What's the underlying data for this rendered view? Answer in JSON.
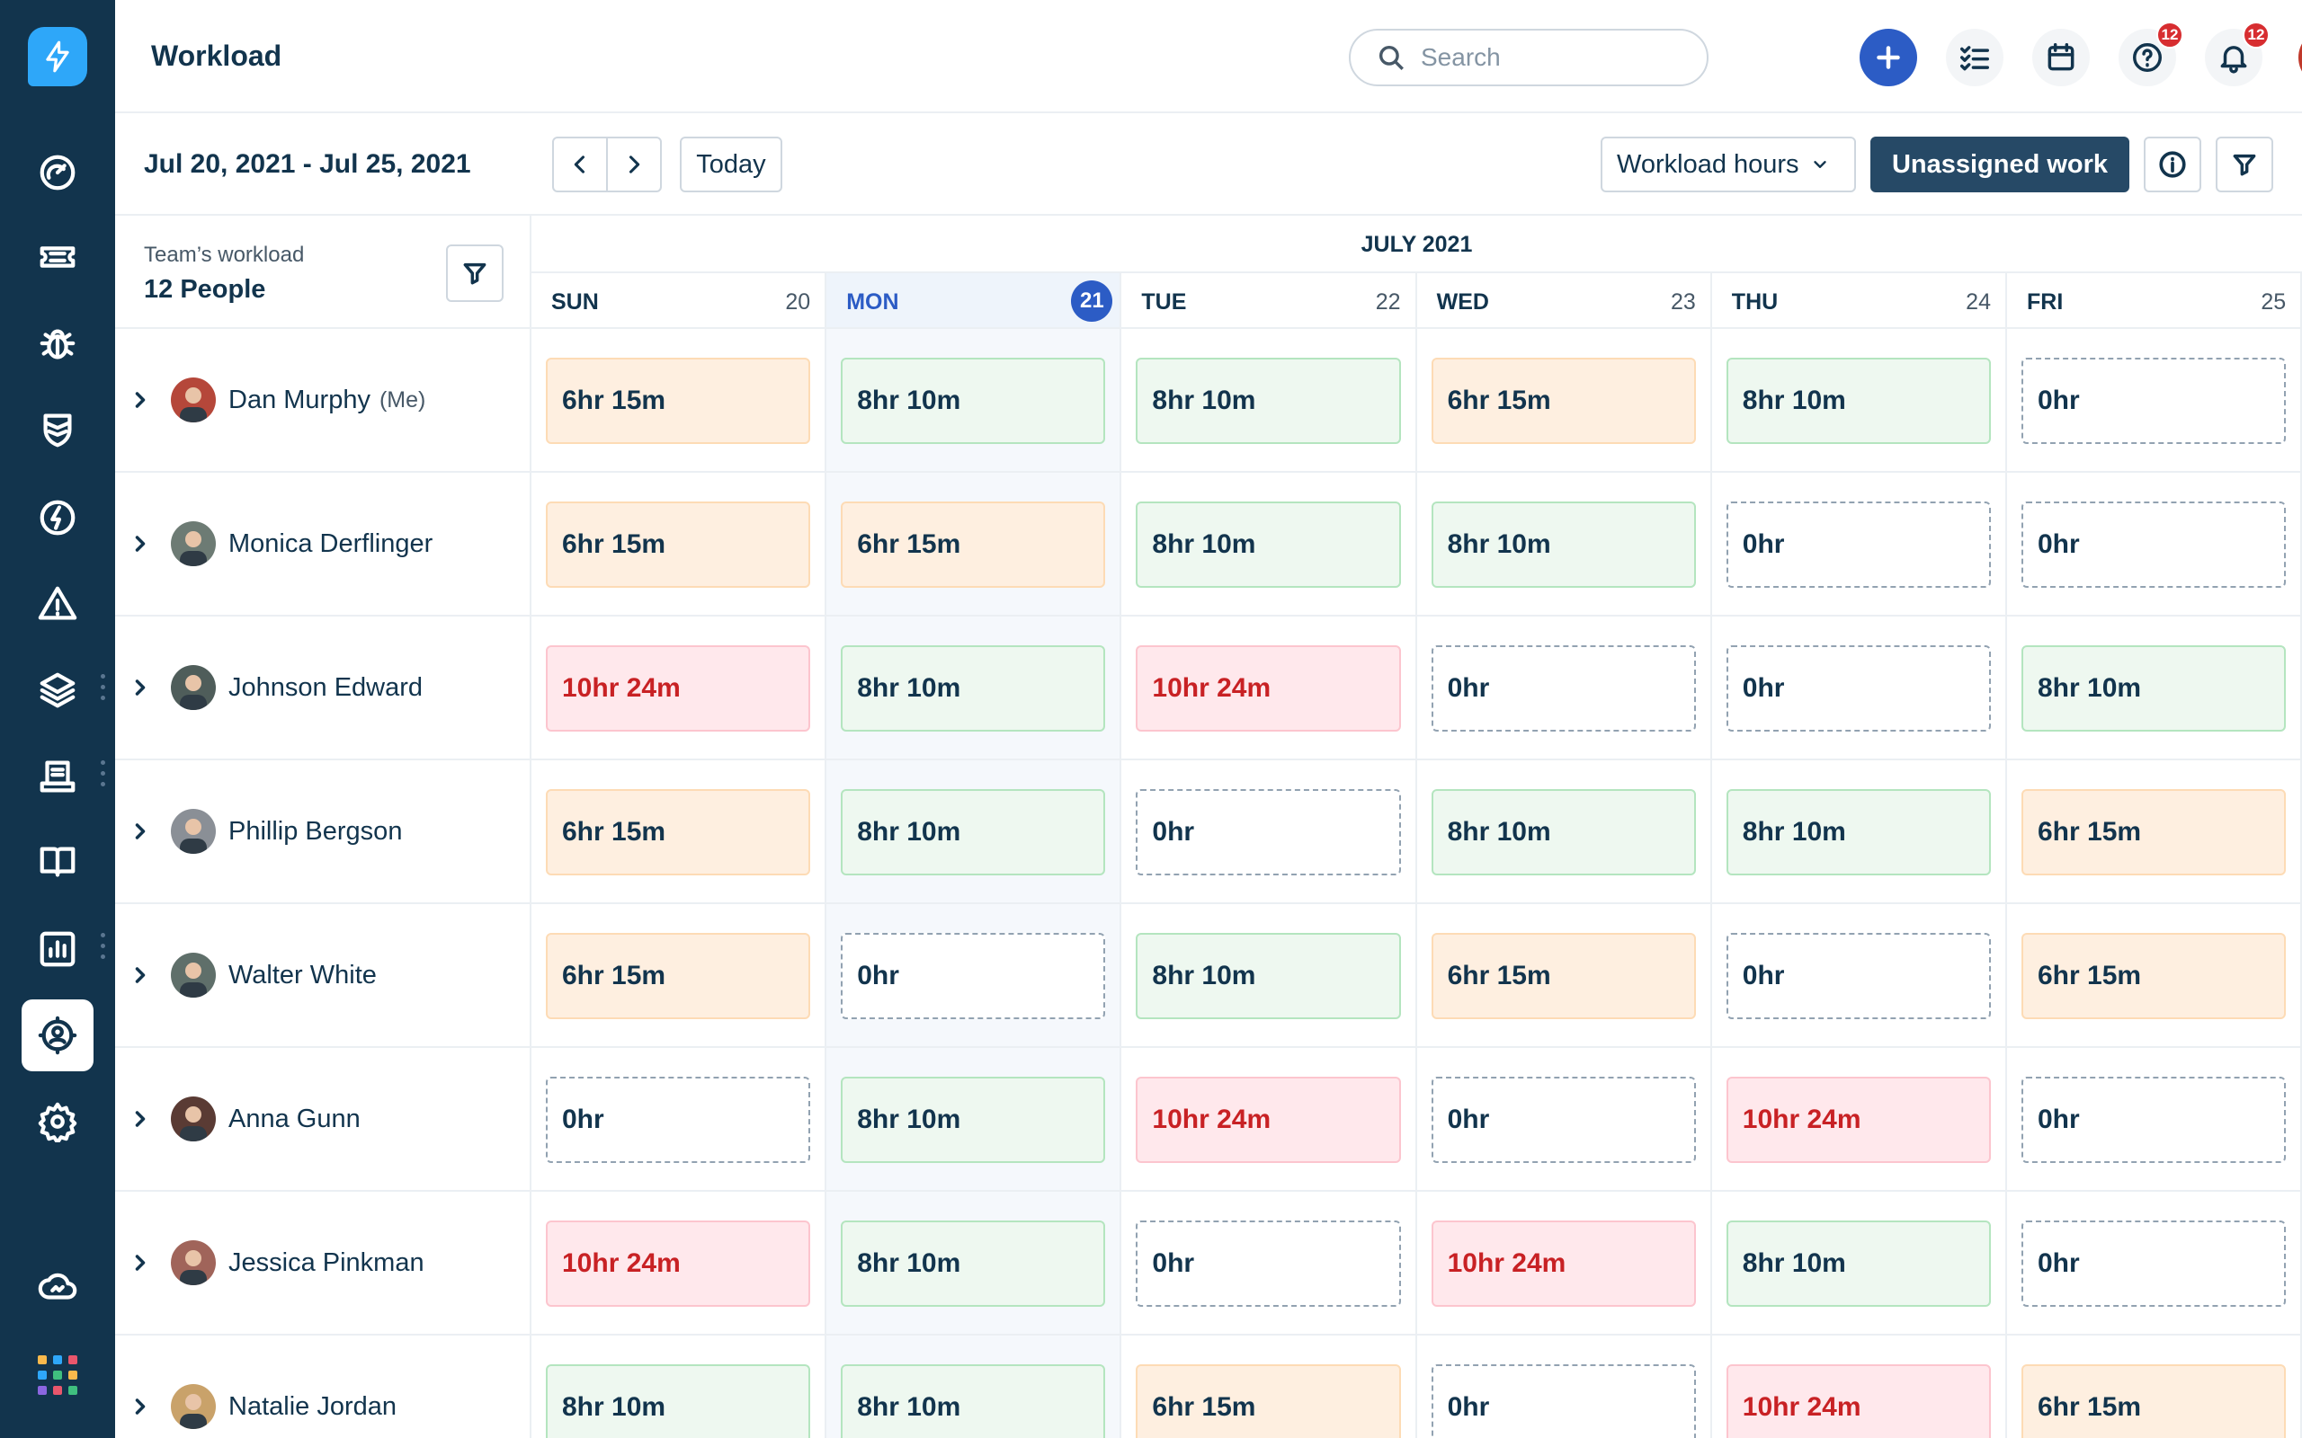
{
  "header": {
    "title": "Workload",
    "search_placeholder": "Search",
    "help_badge": "12",
    "notifications_badge": "12"
  },
  "toolbar": {
    "date_range": "Jul 20, 2021 - Jul 25, 2021",
    "today_label": "Today",
    "view_select": "Workload hours",
    "unassigned_label": "Unassigned work"
  },
  "team": {
    "label": "Team’s workload",
    "count": "12 People"
  },
  "calendar": {
    "month": "JULY 2021",
    "days": [
      {
        "name": "SUN",
        "date": "20",
        "today": false
      },
      {
        "name": "MON",
        "date": "21",
        "today": true
      },
      {
        "name": "TUE",
        "date": "22",
        "today": false
      },
      {
        "name": "WED",
        "date": "23",
        "today": false
      },
      {
        "name": "THU",
        "date": "24",
        "today": false
      },
      {
        "name": "FRI",
        "date": "25",
        "today": false
      }
    ]
  },
  "colors": {
    "sidebar": "#12344d",
    "primary": "#2c5cc5",
    "overload": "#c82124"
  },
  "people": [
    {
      "name": "Dan Murphy",
      "me": "(Me)",
      "avatar": "#b5473a",
      "hours": [
        {
          "v": "6hr 15m",
          "s": "orange"
        },
        {
          "v": "8hr 10m",
          "s": "green"
        },
        {
          "v": "8hr 10m",
          "s": "green"
        },
        {
          "v": "6hr 15m",
          "s": "orange"
        },
        {
          "v": "8hr 10m",
          "s": "green"
        },
        {
          "v": "0hr",
          "s": "empty"
        }
      ]
    },
    {
      "name": "Monica Derflinger",
      "avatar": "#6d7b74",
      "hours": [
        {
          "v": "6hr 15m",
          "s": "orange"
        },
        {
          "v": "6hr 15m",
          "s": "orange"
        },
        {
          "v": "8hr 10m",
          "s": "green"
        },
        {
          "v": "8hr 10m",
          "s": "green"
        },
        {
          "v": "0hr",
          "s": "empty"
        },
        {
          "v": "0hr",
          "s": "empty"
        }
      ]
    },
    {
      "name": "Johnson Edward",
      "avatar": "#4f5d5a",
      "hours": [
        {
          "v": "10hr 24m",
          "s": "red"
        },
        {
          "v": "8hr 10m",
          "s": "green"
        },
        {
          "v": "10hr 24m",
          "s": "red"
        },
        {
          "v": "0hr",
          "s": "empty"
        },
        {
          "v": "0hr",
          "s": "empty"
        },
        {
          "v": "8hr 10m",
          "s": "green"
        }
      ]
    },
    {
      "name": "Phillip Bergson",
      "avatar": "#8a8f96",
      "hours": [
        {
          "v": "6hr 15m",
          "s": "orange"
        },
        {
          "v": "8hr 10m",
          "s": "green"
        },
        {
          "v": "0hr",
          "s": "empty"
        },
        {
          "v": "8hr 10m",
          "s": "green"
        },
        {
          "v": "8hr 10m",
          "s": "green"
        },
        {
          "v": "6hr 15m",
          "s": "orange"
        }
      ]
    },
    {
      "name": "Walter White",
      "avatar": "#5f6f6a",
      "hours": [
        {
          "v": "6hr 15m",
          "s": "orange"
        },
        {
          "v": "0hr",
          "s": "empty"
        },
        {
          "v": "8hr 10m",
          "s": "green"
        },
        {
          "v": "6hr 15m",
          "s": "orange"
        },
        {
          "v": "0hr",
          "s": "empty"
        },
        {
          "v": "6hr 15m",
          "s": "orange"
        }
      ]
    },
    {
      "name": "Anna Gunn",
      "avatar": "#5a3b34",
      "hours": [
        {
          "v": "0hr",
          "s": "empty"
        },
        {
          "v": "8hr 10m",
          "s": "green"
        },
        {
          "v": "10hr 24m",
          "s": "red"
        },
        {
          "v": "0hr",
          "s": "empty"
        },
        {
          "v": "10hr 24m",
          "s": "red"
        },
        {
          "v": "0hr",
          "s": "empty"
        }
      ]
    },
    {
      "name": "Jessica Pinkman",
      "avatar": "#a0645a",
      "hours": [
        {
          "v": "10hr 24m",
          "s": "red"
        },
        {
          "v": "8hr 10m",
          "s": "green"
        },
        {
          "v": "0hr",
          "s": "empty"
        },
        {
          "v": "10hr 24m",
          "s": "red"
        },
        {
          "v": "8hr 10m",
          "s": "green"
        },
        {
          "v": "0hr",
          "s": "empty"
        }
      ]
    },
    {
      "name": "Natalie Jordan",
      "avatar": "#c9a26a",
      "hours": [
        {
          "v": "8hr 10m",
          "s": "green"
        },
        {
          "v": "8hr 10m",
          "s": "green"
        },
        {
          "v": "6hr 15m",
          "s": "orange"
        },
        {
          "v": "0hr",
          "s": "empty"
        },
        {
          "v": "10hr 24m",
          "s": "red"
        },
        {
          "v": "6hr 15m",
          "s": "orange"
        }
      ]
    }
  ]
}
